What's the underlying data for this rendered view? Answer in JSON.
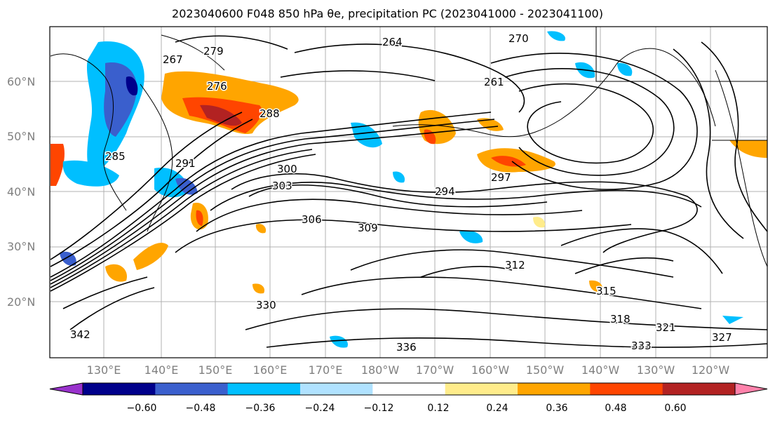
{
  "title": "2023040600 F048 850 hPa θe, precipitation PC (2023041000 - 2023041100)",
  "map": {
    "lat_labels": [
      "60°N",
      "50°N",
      "40°N",
      "30°N",
      "20°N"
    ],
    "lon_labels": [
      "130°E",
      "140°E",
      "150°E",
      "160°E",
      "170°E",
      "180°W",
      "170°W",
      "160°W",
      "150°W",
      "140°W",
      "130°W",
      "120°W"
    ],
    "contour_labels": [
      "267",
      "276",
      "279",
      "288",
      "285",
      "291",
      "294",
      "297",
      "300",
      "303",
      "306",
      "309",
      "312",
      "315",
      "318",
      "321",
      "327",
      "330",
      "333",
      "336",
      "342",
      "264",
      "270",
      "261"
    ],
    "colors": {
      "coastline": "#000000",
      "contour": "#000000",
      "grid": "#b0b0b0",
      "land_border": "#000000"
    }
  },
  "colorbar": {
    "ticks": [
      "−0.60",
      "−0.48",
      "−0.36",
      "−0.24",
      "−0.12",
      "0.12",
      "0.24",
      "0.36",
      "0.48",
      "0.60"
    ],
    "colors": [
      "#9932CC",
      "#00008B",
      "#3A5FCD",
      "#00BFFF",
      "#B0E2FF",
      "#FFFFFF",
      "#FFEC8B",
      "#FFA500",
      "#FF4500",
      "#B22222",
      "#FF82AB"
    ]
  }
}
